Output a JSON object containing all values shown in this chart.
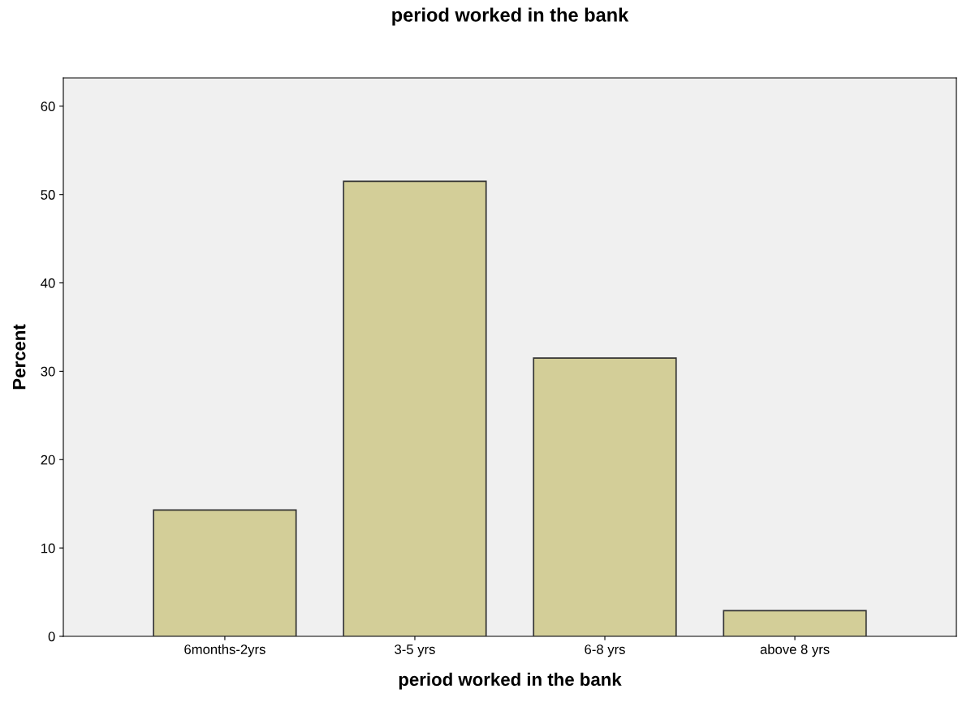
{
  "chart_data": {
    "type": "bar",
    "title": "period worked in the bank",
    "xlabel": "period worked in the bank",
    "ylabel": "Percent",
    "categories": [
      "6months-2yrs",
      "3-5 yrs",
      "6-8 yrs",
      "above 8 yrs"
    ],
    "values": [
      14.3,
      51.5,
      31.5,
      2.9
    ],
    "color": "#d3ce98",
    "ylim": [
      0,
      63.2
    ],
    "yticks": [
      0,
      10,
      20,
      30,
      40,
      50,
      60
    ],
    "grid": false,
    "legend": false
  }
}
